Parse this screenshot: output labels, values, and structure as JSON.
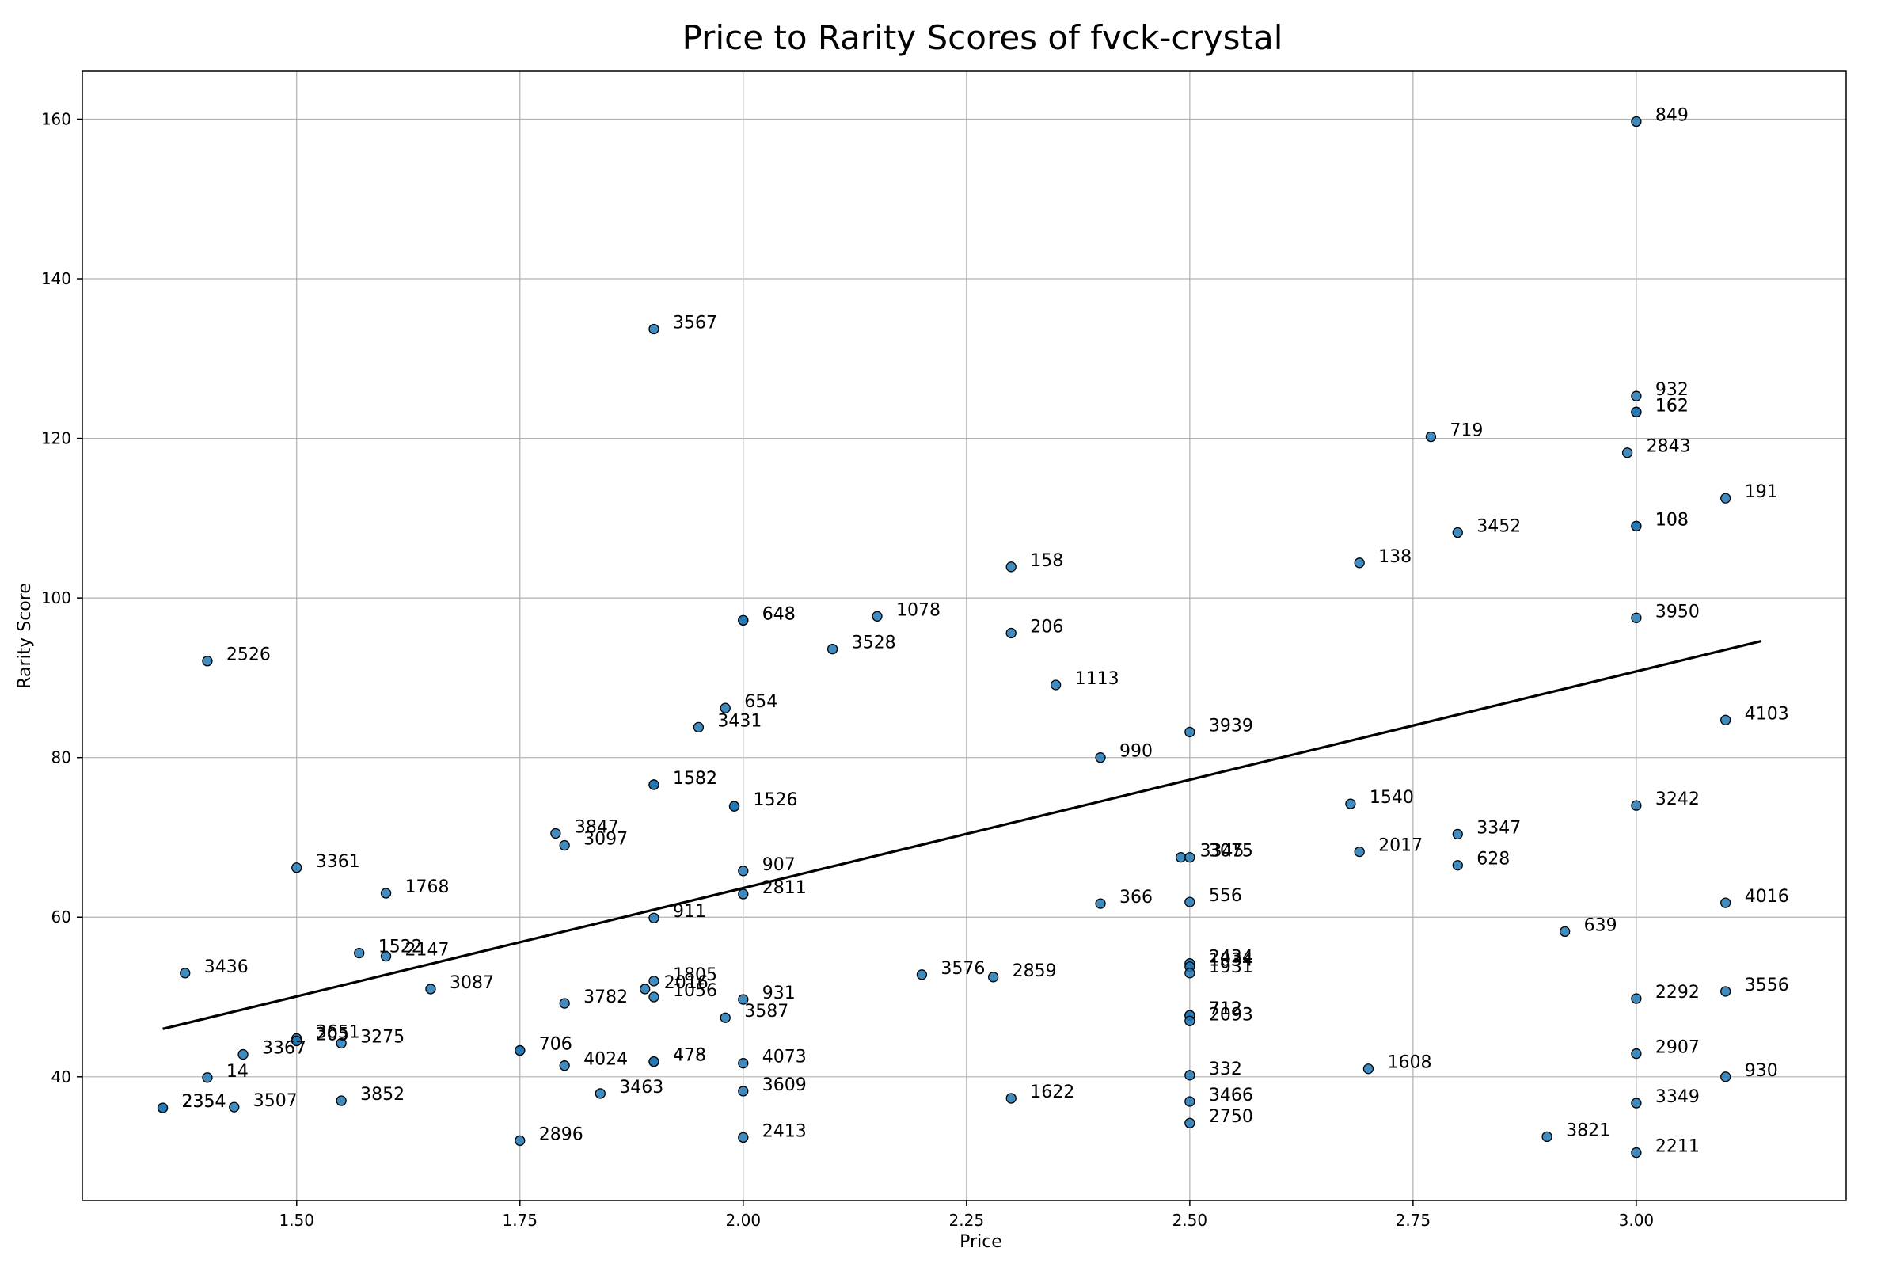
{
  "chart_data": {
    "type": "scatter",
    "title": "Price to Rarity Scores of fvck-crystal",
    "xlabel": "Price",
    "ylabel": "Rarity Score",
    "xlim": [
      1.26,
      3.235
    ],
    "ylim": [
      24.5,
      166
    ],
    "xticks": [
      1.5,
      1.75,
      2.0,
      2.25,
      2.5,
      2.75,
      3.0
    ],
    "xtick_labels": [
      "1.50",
      "1.75",
      "2.00",
      "2.25",
      "2.50",
      "2.75",
      "3.00"
    ],
    "yticks": [
      40,
      60,
      80,
      100,
      120,
      140,
      160
    ],
    "ytick_labels": [
      "40",
      "60",
      "80",
      "100",
      "120",
      "140",
      "160"
    ],
    "grid": true,
    "color": "#1f77b4",
    "trendline": {
      "x": [
        1.35,
        3.14
      ],
      "y": [
        46.0,
        94.6
      ]
    },
    "points": [
      {
        "label": "849",
        "x": 3.0,
        "y": 159.7
      },
      {
        "label": "3567",
        "x": 1.9,
        "y": 133.7
      },
      {
        "label": "932",
        "x": 3.0,
        "y": 125.3
      },
      {
        "label": "162",
        "x": 3.0,
        "y": 123.3
      },
      {
        "label": "162",
        "x": 3.0,
        "y": 123.3
      },
      {
        "label": "719",
        "x": 2.77,
        "y": 120.2
      },
      {
        "label": "2843",
        "x": 2.99,
        "y": 118.2
      },
      {
        "label": "191",
        "x": 3.1,
        "y": 112.5
      },
      {
        "label": "108",
        "x": 3.0,
        "y": 109.0
      },
      {
        "label": "108",
        "x": 3.0,
        "y": 109.0
      },
      {
        "label": "3452",
        "x": 2.8,
        "y": 108.2
      },
      {
        "label": "138",
        "x": 2.69,
        "y": 104.4
      },
      {
        "label": "158",
        "x": 2.3,
        "y": 103.9
      },
      {
        "label": "1078",
        "x": 2.15,
        "y": 97.7
      },
      {
        "label": "648",
        "x": 2.0,
        "y": 97.2
      },
      {
        "label": "648",
        "x": 2.0,
        "y": 97.2
      },
      {
        "label": "3950",
        "x": 3.0,
        "y": 97.5
      },
      {
        "label": "206",
        "x": 2.3,
        "y": 95.6
      },
      {
        "label": "3528",
        "x": 2.1,
        "y": 93.6
      },
      {
        "label": "2526",
        "x": 1.4,
        "y": 92.1
      },
      {
        "label": "1113",
        "x": 2.35,
        "y": 89.1
      },
      {
        "label": "654",
        "x": 1.98,
        "y": 86.2
      },
      {
        "label": "4103",
        "x": 3.1,
        "y": 84.7
      },
      {
        "label": "3431",
        "x": 1.95,
        "y": 83.8
      },
      {
        "label": "3939",
        "x": 2.5,
        "y": 83.2
      },
      {
        "label": "990",
        "x": 2.4,
        "y": 80.0
      },
      {
        "label": "1582",
        "x": 1.9,
        "y": 76.6
      },
      {
        "label": "1582",
        "x": 1.9,
        "y": 76.6
      },
      {
        "label": "1540",
        "x": 2.68,
        "y": 74.2
      },
      {
        "label": "3242",
        "x": 3.0,
        "y": 74.0
      },
      {
        "label": "1526",
        "x": 1.99,
        "y": 73.9
      },
      {
        "label": "1526",
        "x": 1.99,
        "y": 73.9
      },
      {
        "label": "3847",
        "x": 1.79,
        "y": 70.5
      },
      {
        "label": "3347",
        "x": 2.8,
        "y": 70.4
      },
      {
        "label": "3097",
        "x": 1.8,
        "y": 69.0
      },
      {
        "label": "2017",
        "x": 2.69,
        "y": 68.2
      },
      {
        "label": "3345",
        "x": 2.49,
        "y": 67.5
      },
      {
        "label": "3075",
        "x": 2.5,
        "y": 67.5
      },
      {
        "label": "628",
        "x": 2.8,
        "y": 66.5
      },
      {
        "label": "3361",
        "x": 1.5,
        "y": 66.2
      },
      {
        "label": "907",
        "x": 2.0,
        "y": 65.8
      },
      {
        "label": "1768",
        "x": 1.6,
        "y": 63.0
      },
      {
        "label": "2811",
        "x": 2.0,
        "y": 62.9
      },
      {
        "label": "556",
        "x": 2.5,
        "y": 61.9
      },
      {
        "label": "366",
        "x": 2.4,
        "y": 61.7
      },
      {
        "label": "4016",
        "x": 3.1,
        "y": 61.8
      },
      {
        "label": "911",
        "x": 1.9,
        "y": 59.9
      },
      {
        "label": "639",
        "x": 2.92,
        "y": 58.2
      },
      {
        "label": "1522",
        "x": 1.57,
        "y": 55.5
      },
      {
        "label": "2147",
        "x": 1.6,
        "y": 55.1
      },
      {
        "label": "2434",
        "x": 2.5,
        "y": 54.2
      },
      {
        "label": "1034",
        "x": 2.5,
        "y": 53.8
      },
      {
        "label": "1931",
        "x": 2.5,
        "y": 53.0
      },
      {
        "label": "3436",
        "x": 1.375,
        "y": 53.0
      },
      {
        "label": "3576",
        "x": 2.2,
        "y": 52.8
      },
      {
        "label": "2859",
        "x": 2.28,
        "y": 52.5
      },
      {
        "label": "1805",
        "x": 1.9,
        "y": 52.0
      },
      {
        "label": "2016",
        "x": 1.89,
        "y": 51.0
      },
      {
        "label": "3087",
        "x": 1.65,
        "y": 51.0
      },
      {
        "label": "3556",
        "x": 3.1,
        "y": 50.7
      },
      {
        "label": "1056",
        "x": 1.9,
        "y": 50.0
      },
      {
        "label": "2292",
        "x": 3.0,
        "y": 49.8
      },
      {
        "label": "931",
        "x": 2.0,
        "y": 49.7
      },
      {
        "label": "3782",
        "x": 1.8,
        "y": 49.2
      },
      {
        "label": "712",
        "x": 2.5,
        "y": 47.7
      },
      {
        "label": "712",
        "x": 2.5,
        "y": 47.7
      },
      {
        "label": "3587",
        "x": 1.98,
        "y": 47.4
      },
      {
        "label": "2093",
        "x": 2.5,
        "y": 47.0
      },
      {
        "label": "3651",
        "x": 1.5,
        "y": 44.8
      },
      {
        "label": "205",
        "x": 1.5,
        "y": 44.5
      },
      {
        "label": "205",
        "x": 1.5,
        "y": 44.5
      },
      {
        "label": "3275",
        "x": 1.55,
        "y": 44.2
      },
      {
        "label": "706",
        "x": 1.75,
        "y": 43.3
      },
      {
        "label": "706",
        "x": 1.75,
        "y": 43.3
      },
      {
        "label": "2907",
        "x": 3.0,
        "y": 42.9
      },
      {
        "label": "3367",
        "x": 1.44,
        "y": 42.8
      },
      {
        "label": "478",
        "x": 1.9,
        "y": 41.9
      },
      {
        "label": "478",
        "x": 1.9,
        "y": 41.9
      },
      {
        "label": "4073",
        "x": 2.0,
        "y": 41.7
      },
      {
        "label": "4024",
        "x": 1.8,
        "y": 41.4
      },
      {
        "label": "1608",
        "x": 2.7,
        "y": 41.0
      },
      {
        "label": "332",
        "x": 2.5,
        "y": 40.2
      },
      {
        "label": "930",
        "x": 3.1,
        "y": 40.0
      },
      {
        "label": "14",
        "x": 1.4,
        "y": 39.9
      },
      {
        "label": "3609",
        "x": 2.0,
        "y": 38.2
      },
      {
        "label": "3463",
        "x": 1.84,
        "y": 37.9
      },
      {
        "label": "1622",
        "x": 2.3,
        "y": 37.3
      },
      {
        "label": "3852",
        "x": 1.55,
        "y": 37.0
      },
      {
        "label": "3466",
        "x": 2.5,
        "y": 36.9
      },
      {
        "label": "3349",
        "x": 3.0,
        "y": 36.7
      },
      {
        "label": "3507",
        "x": 1.43,
        "y": 36.2
      },
      {
        "label": "2354",
        "x": 1.35,
        "y": 36.1
      },
      {
        "label": "2354",
        "x": 1.35,
        "y": 36.1
      },
      {
        "label": "2750",
        "x": 2.5,
        "y": 34.2
      },
      {
        "label": "3821",
        "x": 2.9,
        "y": 32.5
      },
      {
        "label": "2413",
        "x": 2.0,
        "y": 32.4
      },
      {
        "label": "2896",
        "x": 1.75,
        "y": 32.0
      },
      {
        "label": "2211",
        "x": 3.0,
        "y": 30.5
      }
    ]
  }
}
